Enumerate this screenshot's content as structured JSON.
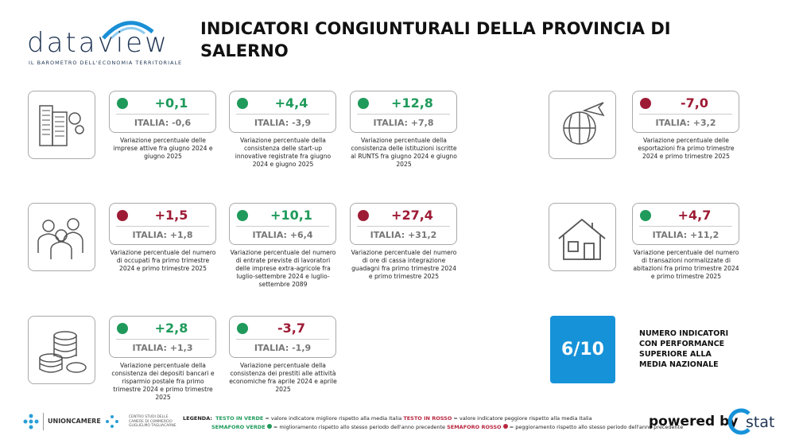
{
  "header": {
    "logo": "dataview",
    "tagline": "IL BAROMETRO DELL'ECONOMIA TERRITORIALE",
    "title": "INDICATORI CONGIUNTURALI DELLA PROVINCIA DI SALERNO"
  },
  "cards": [
    {
      "value": "+0,1",
      "italia": "ITALIA: -0,6",
      "description": "Variazione percentuale delle imprese attive fra giugno 2024 e giugno 2025",
      "dot": "#1f9a5b",
      "tone": "#1f9a5b"
    },
    {
      "value": "+4,4",
      "italia": "ITALIA: -3,9",
      "description": "Variazione percentuale della consistenza delle start-up innovative registrate fra giugno 2024 e giugno 2025",
      "dot": "#1f9a5b",
      "tone": "#1f9a5b"
    },
    {
      "value": "+12,8",
      "italia": "ITALIA: +7,8",
      "description": "Variazione percentuale della consistenza delle istituzioni iscritte al RUNTS fra giugno 2024 e giugno 2025",
      "dot": "#1f9a5b",
      "tone": "#1f9a5b"
    },
    {
      "value": "-7,0",
      "italia": "ITALIA: +3,2",
      "description": "Variazione percentuale delle esportazioni fra primo trimestre 2024 e primo trimestre 2025",
      "dot": "#9e1b35",
      "tone": "#9e1b35"
    },
    {
      "value": "+1,5",
      "italia": "ITALIA: +1,8",
      "description": "Variazione percentuale del numero di occupati fra primo trimestre 2024 e primo trimestre 2025",
      "dot": "#9e1b35",
      "tone": "#9e1b35"
    },
    {
      "value": "+10,1",
      "italia": "ITALIA: +6,4",
      "description": "Variazione percentuale del numero di entrate previste di lavoratori delle imprese extra-agricole fra luglio-settembre 2024 e luglio-settembre 2089",
      "dot": "#1f9a5b",
      "tone": "#1f9a5b"
    },
    {
      "value": "+27,4",
      "italia": "ITALIA: +31,2",
      "description": "Variazione percentuale del numero di ore di cassa integrazione guadagni fra primo trimestre 2024 e primo trimestre 2025",
      "dot": "#9e1b35",
      "tone": "#9e1b35"
    },
    {
      "value": "+4,7",
      "italia": "ITALIA: +11,2",
      "description": "Variazione percentuale del numero di transazioni normalizzate di abitazioni fra primo trimestre 2024 e primo trimestre 2025",
      "dot": "#1f9a5b",
      "tone": "#9e1b35"
    },
    {
      "value": "+2,8",
      "italia": "ITALIA: +1,3",
      "description": "Variazione percentuale della consistenza dei depositi bancari e risparmio postale fra primo trimestre 2024 e primo trimestre 2025",
      "dot": "#1f9a5b",
      "tone": "#1f9a5b"
    },
    {
      "value": "-3,7",
      "italia": "ITALIA: -1,9",
      "description": "Variazione percentuale della consistenza dei prestiti alle attività economiche fra aprile 2024 e aprile 2025",
      "dot": "#1f9a5b",
      "tone": "#9e1b35"
    }
  ],
  "summary": {
    "score": "6/10",
    "text": "NUMERO INDICATORI CON PERFORMANCE SUPERIORE ALLA MEDIA NAZIONALE"
  },
  "footer": {
    "unioncamere": "UNIONCAMERE",
    "centro_studi": "CENTRO STUDI DELLE CAMERE DI COMMERCIO GUGLIELMO TAGLIACARNE",
    "legend_label": "LEGENDA:",
    "green_text": "TESTO IN VERDE",
    "green_text_desc": "= valore indicatore migliore rispetto alla media Italia",
    "red_text": "TESTO IN ROSSO",
    "red_text_desc": "= valore indicatore peggiore rispetto alla media Italia",
    "green_light": "SEMAFORO VERDE",
    "green_light_desc": "= miglioramento rispetto allo stesso periodo dell'anno precedente",
    "red_light": "SEMAFORO ROSSO",
    "red_light_desc": "= peggioramento rispetto allo stesso periodo dell'anno precedente",
    "powered_by": "powered by",
    "brand": "stat"
  }
}
